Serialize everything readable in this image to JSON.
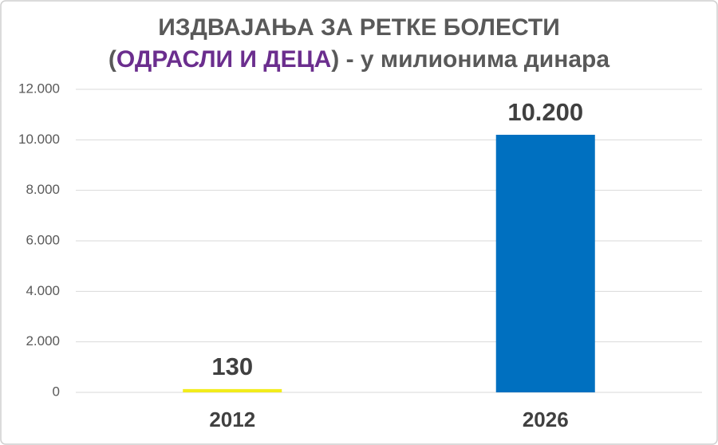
{
  "chart_data": {
    "type": "bar",
    "title": "ИЗДВАЈАЊА ЗА РЕТКЕ БОЛЕСТИ",
    "subtitle_parts": [
      {
        "text": "(",
        "color": "#595959"
      },
      {
        "text": "ОДРАСЛИ И ДЕЦА",
        "color": "#6b2e8e"
      },
      {
        "text": ") - у милионима динара",
        "color": "#595959"
      }
    ],
    "categories": [
      "2012",
      "2026"
    ],
    "values": [
      130,
      10200
    ],
    "value_labels": [
      "130",
      "10.200"
    ],
    "colors": [
      "#f2ec1c",
      "#0070c0"
    ],
    "ylim": [
      0,
      12000
    ],
    "yticks": [
      0,
      {
        "value": 2000,
        "label": "2.000"
      },
      {
        "value": 4000,
        "label": "4.000"
      },
      {
        "value": 6000,
        "label": "6.000"
      },
      {
        "value": 8000,
        "label": "8.000"
      },
      {
        "value": 10000,
        "label": "10.000"
      },
      {
        "value": 12000,
        "label": "12.000"
      }
    ],
    "grid": true
  }
}
